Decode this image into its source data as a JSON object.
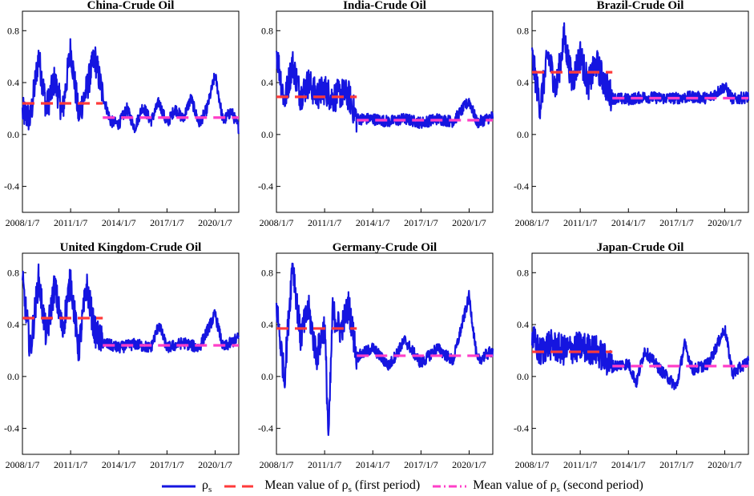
{
  "legend": {
    "rho_label": "ρ",
    "rho_sub": "s",
    "mean1_prefix": "Mean value of ρ",
    "mean1_sub": "s",
    "mean1_suffix": " (first period)",
    "mean2_prefix": "Mean value of ρ",
    "mean2_sub": "s",
    "mean2_suffix": " (second period)"
  },
  "colors": {
    "series": "#1515e0",
    "mean_first": "#ff3a3a",
    "mean_second": "#ff3fc8"
  },
  "chart_data": [
    {
      "type": "line",
      "title": "China-Crude Oil",
      "x_ticks": [
        "2008/1/7",
        "2011/1/7",
        "2014/1/7",
        "2017/1/7",
        "2020/1/7"
      ],
      "y_ticks": [
        "-0.4",
        "0.0",
        "0.4",
        "0.8"
      ],
      "ylim": [
        -0.6,
        0.95
      ],
      "x_range": [
        "2008/1/7",
        "2021/6/28"
      ],
      "break_date": "2013/1/7",
      "mean_first": 0.24,
      "mean_second": 0.13,
      "series_points": [
        [
          "2008/1/7",
          0.17
        ],
        [
          "2008/7/7",
          0.12
        ],
        [
          "2009/1/7",
          0.6
        ],
        [
          "2009/7/7",
          0.2
        ],
        [
          "2010/1/7",
          0.42
        ],
        [
          "2010/7/7",
          0.17
        ],
        [
          "2011/1/7",
          0.66
        ],
        [
          "2011/7/7",
          0.15
        ],
        [
          "2012/1/7",
          0.35
        ],
        [
          "2012/7/7",
          0.6
        ],
        [
          "2013/1/7",
          0.3
        ],
        [
          "2013/7/7",
          0.1
        ],
        [
          "2014/1/7",
          0.08
        ],
        [
          "2014/7/7",
          0.2
        ],
        [
          "2015/1/7",
          0.05
        ],
        [
          "2015/7/7",
          0.22
        ],
        [
          "2016/1/7",
          0.1
        ],
        [
          "2016/7/7",
          0.25
        ],
        [
          "2017/1/7",
          0.08
        ],
        [
          "2017/7/7",
          0.2
        ],
        [
          "2018/1/7",
          0.12
        ],
        [
          "2018/7/7",
          0.28
        ],
        [
          "2019/1/7",
          0.08
        ],
        [
          "2019/7/7",
          0.2
        ],
        [
          "2020/1/7",
          0.46
        ],
        [
          "2020/7/7",
          0.1
        ],
        [
          "2021/1/7",
          0.18
        ],
        [
          "2021/6/28",
          0.05
        ]
      ]
    },
    {
      "type": "line",
      "title": "India-Crude Oil",
      "x_ticks": [
        "2008/1/7",
        "2011/1/7",
        "2014/1/7",
        "2017/1/7",
        "2020/1/7"
      ],
      "y_ticks": [
        "-0.4",
        "0.0",
        "0.4",
        "0.8"
      ],
      "ylim": [
        -0.6,
        0.95
      ],
      "x_range": [
        "2008/1/7",
        "2021/6/28"
      ],
      "break_date": "2013/1/7",
      "mean_first": 0.29,
      "mean_second": 0.11,
      "series_points": [
        [
          "2008/1/7",
          0.65
        ],
        [
          "2008/7/7",
          0.25
        ],
        [
          "2009/1/7",
          0.55
        ],
        [
          "2009/7/7",
          0.3
        ],
        [
          "2010/1/7",
          0.4
        ],
        [
          "2010/7/7",
          0.3
        ],
        [
          "2011/1/7",
          0.35
        ],
        [
          "2011/7/7",
          0.28
        ],
        [
          "2012/1/7",
          0.32
        ],
        [
          "2012/7/7",
          0.3
        ],
        [
          "2013/1/7",
          0.12
        ],
        [
          "2014/1/7",
          0.12
        ],
        [
          "2015/1/7",
          0.1
        ],
        [
          "2016/1/7",
          0.12
        ],
        [
          "2017/1/7",
          0.09
        ],
        [
          "2018/1/7",
          0.12
        ],
        [
          "2019/1/7",
          0.1
        ],
        [
          "2020/1/7",
          0.26
        ],
        [
          "2020/7/7",
          0.09
        ],
        [
          "2021/6/28",
          0.14
        ]
      ]
    },
    {
      "type": "line",
      "title": "Brazil-Crude Oil",
      "x_ticks": [
        "2008/1/7",
        "2011/1/7",
        "2014/1/7",
        "2017/1/7",
        "2020/1/7"
      ],
      "y_ticks": [
        "-0.4",
        "0.0",
        "0.4",
        "0.8"
      ],
      "ylim": [
        -0.6,
        0.95
      ],
      "x_range": [
        "2008/1/7",
        "2021/6/28"
      ],
      "break_date": "2013/1/7",
      "mean_first": 0.48,
      "mean_second": 0.28,
      "series_points": [
        [
          "2008/1/7",
          0.6
        ],
        [
          "2008/7/7",
          0.22
        ],
        [
          "2009/1/7",
          0.62
        ],
        [
          "2009/7/7",
          0.35
        ],
        [
          "2010/1/7",
          0.75
        ],
        [
          "2010/7/7",
          0.4
        ],
        [
          "2011/1/7",
          0.62
        ],
        [
          "2011/7/7",
          0.38
        ],
        [
          "2012/1/7",
          0.55
        ],
        [
          "2012/7/7",
          0.4
        ],
        [
          "2013/1/7",
          0.28
        ],
        [
          "2014/1/7",
          0.27
        ],
        [
          "2015/1/7",
          0.29
        ],
        [
          "2016/1/7",
          0.28
        ],
        [
          "2017/1/7",
          0.28
        ],
        [
          "2018/1/7",
          0.29
        ],
        [
          "2019/1/7",
          0.28
        ],
        [
          "2020/1/7",
          0.37
        ],
        [
          "2020/7/7",
          0.27
        ],
        [
          "2021/6/28",
          0.29
        ]
      ]
    },
    {
      "type": "line",
      "title": "United Kingdom-Crude Oil",
      "x_ticks": [
        "2008/1/7",
        "2011/1/7",
        "2014/1/7",
        "2017/1/7",
        "2020/1/7"
      ],
      "y_ticks": [
        "-0.4",
        "0.0",
        "0.4",
        "0.8"
      ],
      "ylim": [
        -0.6,
        0.95
      ],
      "x_range": [
        "2008/1/7",
        "2021/6/28"
      ],
      "break_date": "2013/1/7",
      "mean_first": 0.45,
      "mean_second": 0.24,
      "series_points": [
        [
          "2008/1/7",
          0.73
        ],
        [
          "2008/7/7",
          0.2
        ],
        [
          "2009/1/7",
          0.75
        ],
        [
          "2009/7/7",
          0.3
        ],
        [
          "2010/1/7",
          0.7
        ],
        [
          "2010/7/7",
          0.35
        ],
        [
          "2011/1/7",
          0.75
        ],
        [
          "2011/7/7",
          0.2
        ],
        [
          "2012/1/7",
          0.7
        ],
        [
          "2012/7/7",
          0.35
        ],
        [
          "2013/1/7",
          0.26
        ],
        [
          "2014/1/7",
          0.22
        ],
        [
          "2015/1/7",
          0.25
        ],
        [
          "2016/1/7",
          0.22
        ],
        [
          "2016/7/7",
          0.4
        ],
        [
          "2017/1/7",
          0.22
        ],
        [
          "2018/1/7",
          0.26
        ],
        [
          "2019/1/7",
          0.22
        ],
        [
          "2020/1/7",
          0.48
        ],
        [
          "2020/7/7",
          0.22
        ],
        [
          "2021/6/28",
          0.3
        ]
      ]
    },
    {
      "type": "line",
      "title": "Germany-Crude Oil",
      "x_ticks": [
        "2008/1/7",
        "2011/1/7",
        "2014/1/7",
        "2017/1/7",
        "2020/1/7"
      ],
      "y_ticks": [
        "-0.4",
        "0.0",
        "0.4",
        "0.8"
      ],
      "ylim": [
        -0.6,
        0.95
      ],
      "x_range": [
        "2008/1/7",
        "2021/6/28"
      ],
      "break_date": "2013/1/7",
      "mean_first": 0.37,
      "mean_second": 0.16,
      "series_points": [
        [
          "2008/1/7",
          0.55
        ],
        [
          "2008/7/7",
          -0.02
        ],
        [
          "2009/1/7",
          0.89
        ],
        [
          "2009/7/7",
          0.3
        ],
        [
          "2010/1/7",
          0.52
        ],
        [
          "2010/7/7",
          0.15
        ],
        [
          "2011/1/7",
          0.4
        ],
        [
          "2011/4/7",
          -0.49
        ],
        [
          "2011/7/7",
          0.5
        ],
        [
          "2012/1/7",
          0.35
        ],
        [
          "2012/7/7",
          0.55
        ],
        [
          "2013/1/7",
          0.15
        ],
        [
          "2014/1/7",
          0.22
        ],
        [
          "2015/1/7",
          0.08
        ],
        [
          "2016/1/7",
          0.28
        ],
        [
          "2017/1/7",
          0.1
        ],
        [
          "2018/1/7",
          0.22
        ],
        [
          "2019/1/7",
          0.12
        ],
        [
          "2020/1/7",
          0.62
        ],
        [
          "2020/7/7",
          0.12
        ],
        [
          "2021/6/28",
          0.2
        ]
      ]
    },
    {
      "type": "line",
      "title": "Japan-Crude Oil",
      "x_ticks": [
        "2008/1/7",
        "2011/1/7",
        "2014/1/7",
        "2017/1/7",
        "2020/1/7"
      ],
      "y_ticks": [
        "-0.4",
        "0.0",
        "0.4",
        "0.8"
      ],
      "ylim": [
        -0.6,
        0.95
      ],
      "x_range": [
        "2008/1/7",
        "2021/6/28"
      ],
      "break_date": "2013/1/7",
      "mean_first": 0.19,
      "mean_second": 0.08,
      "series_points": [
        [
          "2008/1/7",
          0.3
        ],
        [
          "2008/7/7",
          0.18
        ],
        [
          "2009/1/7",
          0.25
        ],
        [
          "2010/1/7",
          0.2
        ],
        [
          "2011/1/7",
          0.23
        ],
        [
          "2012/1/7",
          0.2
        ],
        [
          "2013/1/7",
          0.08
        ],
        [
          "2014/1/7",
          0.1
        ],
        [
          "2014/7/7",
          -0.05
        ],
        [
          "2015/1/7",
          0.2
        ],
        [
          "2016/1/7",
          0.05
        ],
        [
          "2017/1/7",
          -0.08
        ],
        [
          "2017/7/7",
          0.25
        ],
        [
          "2018/1/7",
          0.05
        ],
        [
          "2019/1/7",
          0.1
        ],
        [
          "2020/1/7",
          0.37
        ],
        [
          "2020/7/7",
          0.02
        ],
        [
          "2021/6/28",
          0.12
        ]
      ]
    }
  ]
}
